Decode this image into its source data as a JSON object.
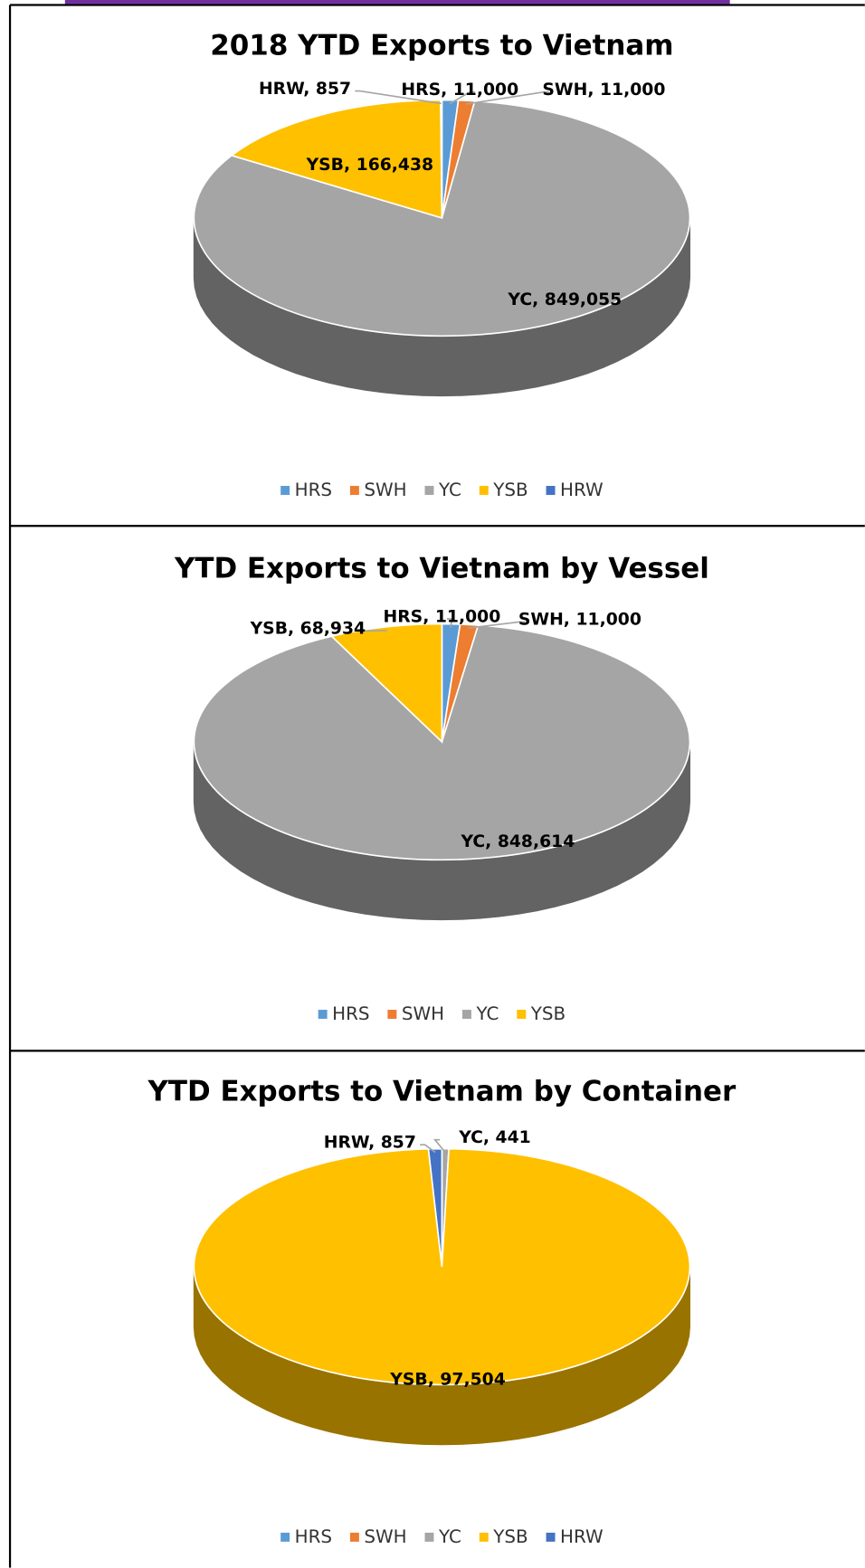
{
  "chart_data": [
    {
      "type": "pie3d",
      "title": "2018 YTD Exports to Vietnam",
      "categories": [
        "HRS",
        "SWH",
        "YC",
        "YSB",
        "HRW"
      ],
      "values": [
        11000,
        11000,
        849055,
        166438,
        857
      ],
      "value_labels": [
        "HRS, 11,000",
        "SWH, 11,000",
        "YC, 849,055",
        "YSB, 166,438",
        "HRW, 857"
      ],
      "colors": [
        "#5b9bd5",
        "#ed7d31",
        "#a5a5a5",
        "#ffc000",
        "#4472c4"
      ],
      "legend": "bottom"
    },
    {
      "type": "pie3d",
      "title": "YTD Exports to Vietnam by Vessel",
      "categories": [
        "HRS",
        "SWH",
        "YC",
        "YSB"
      ],
      "values": [
        11000,
        11000,
        848614,
        68934
      ],
      "value_labels": [
        "HRS, 11,000",
        "SWH, 11,000",
        "YC, 848,614",
        "YSB, 68,934"
      ],
      "colors": [
        "#5b9bd5",
        "#ed7d31",
        "#a5a5a5",
        "#ffc000"
      ],
      "legend": "bottom"
    },
    {
      "type": "pie3d",
      "title": "YTD Exports to Vietnam by Container",
      "categories": [
        "HRS",
        "SWH",
        "YC",
        "YSB",
        "HRW"
      ],
      "values": [
        0,
        0,
        441,
        97504,
        857
      ],
      "value_labels": [
        null,
        null,
        "YC, 441",
        "YSB, 97,504",
        "HRW, 857"
      ],
      "colors": [
        "#5b9bd5",
        "#ed7d31",
        "#a5a5a5",
        "#ffc000",
        "#4472c4"
      ],
      "legend": "bottom"
    }
  ]
}
